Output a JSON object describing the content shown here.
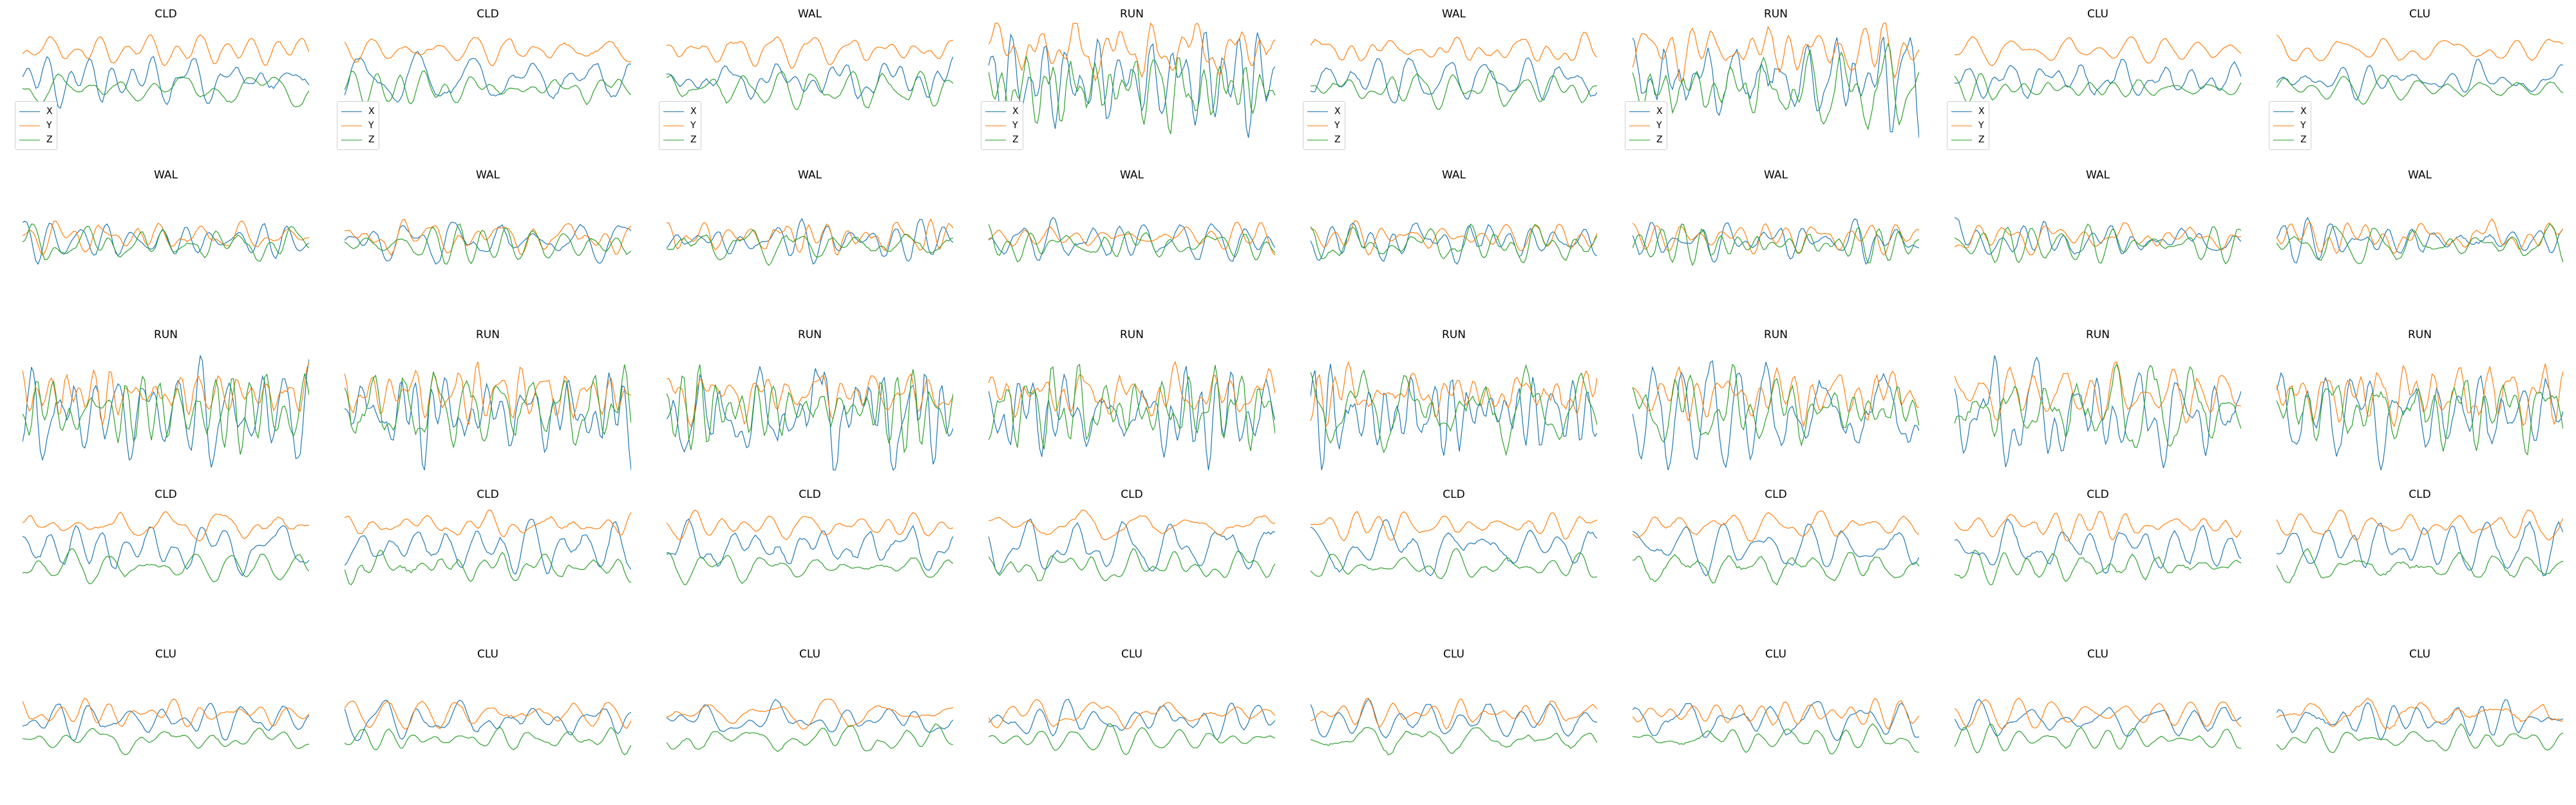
{
  "colors": {
    "X": "#1f77b4",
    "Y": "#ff7f0e",
    "Z": "#2ca02c"
  },
  "legend_labels": [
    "X",
    "Y",
    "Z"
  ],
  "chart_data": {
    "type": "line",
    "grid_rows": 5,
    "grid_cols": 8,
    "grid": false,
    "series_names": [
      "X",
      "Y",
      "Z"
    ],
    "legend_placement": "lower-left (first row panels)",
    "panels": [
      {
        "title": "CLD",
        "legend": true
      },
      {
        "title": "CLD",
        "legend": true
      },
      {
        "title": "WAL",
        "legend": true
      },
      {
        "title": "RUN",
        "legend": true
      },
      {
        "title": "WAL",
        "legend": true
      },
      {
        "title": "RUN",
        "legend": true
      },
      {
        "title": "CLU",
        "legend": true
      },
      {
        "title": "CLU",
        "legend": true
      },
      {
        "title": "WAL",
        "legend": false
      },
      {
        "title": "WAL",
        "legend": false
      },
      {
        "title": "WAL",
        "legend": false
      },
      {
        "title": "WAL",
        "legend": false
      },
      {
        "title": "WAL",
        "legend": false
      },
      {
        "title": "WAL",
        "legend": false
      },
      {
        "title": "WAL",
        "legend": false
      },
      {
        "title": "WAL",
        "legend": false
      },
      {
        "title": "RUN",
        "legend": false
      },
      {
        "title": "RUN",
        "legend": false
      },
      {
        "title": "RUN",
        "legend": false
      },
      {
        "title": "RUN",
        "legend": false
      },
      {
        "title": "RUN",
        "legend": false
      },
      {
        "title": "RUN",
        "legend": false
      },
      {
        "title": "RUN",
        "legend": false
      },
      {
        "title": "RUN",
        "legend": false
      },
      {
        "title": "CLD",
        "legend": false
      },
      {
        "title": "CLD",
        "legend": false
      },
      {
        "title": "CLD",
        "legend": false
      },
      {
        "title": "CLD",
        "legend": false
      },
      {
        "title": "CLD",
        "legend": false
      },
      {
        "title": "CLD",
        "legend": false
      },
      {
        "title": "CLD",
        "legend": false
      },
      {
        "title": "CLD",
        "legend": false
      },
      {
        "title": "CLU",
        "legend": false
      },
      {
        "title": "CLU",
        "legend": false
      },
      {
        "title": "CLU",
        "legend": false
      },
      {
        "title": "CLU",
        "legend": false
      },
      {
        "title": "CLU",
        "legend": false
      },
      {
        "title": "CLU",
        "legend": false
      },
      {
        "title": "CLU",
        "legend": false
      },
      {
        "title": "CLU",
        "legend": false
      }
    ]
  }
}
